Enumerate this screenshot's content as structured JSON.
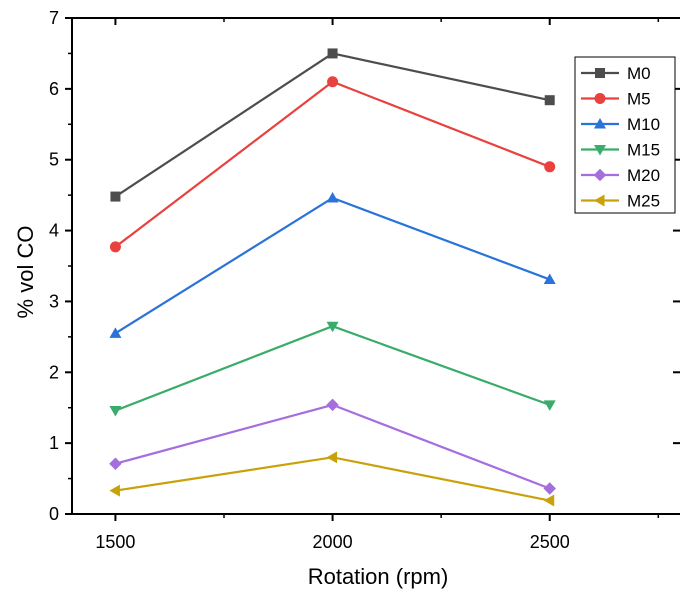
{
  "chart_data": {
    "type": "line",
    "title": "",
    "xlabel": "Rotation (rpm)",
    "ylabel": "% vol CO",
    "x": [
      1500,
      2000,
      2500
    ],
    "xlim": [
      1400,
      2800
    ],
    "ylim": [
      0,
      7
    ],
    "x_ticks": [
      "1500",
      "2000",
      "2500"
    ],
    "y_ticks": [
      "0",
      "1",
      "2",
      "3",
      "4",
      "5",
      "6",
      "7"
    ],
    "grid": false,
    "legend_position": "top-right",
    "series": [
      {
        "name": "M0",
        "values": [
          4.48,
          6.5,
          5.84
        ],
        "color": "#4d4d4d",
        "marker": "square"
      },
      {
        "name": "M5",
        "values": [
          3.77,
          6.1,
          4.9
        ],
        "color": "#e8413e",
        "marker": "circle"
      },
      {
        "name": "M10",
        "values": [
          2.55,
          4.46,
          3.31
        ],
        "color": "#2a73d9",
        "marker": "triangle-up"
      },
      {
        "name": "M15",
        "values": [
          1.46,
          2.65,
          1.54
        ],
        "color": "#3aac6a",
        "marker": "triangle-down"
      },
      {
        "name": "M20",
        "values": [
          0.71,
          1.54,
          0.36
        ],
        "color": "#a56ede",
        "marker": "diamond"
      },
      {
        "name": "M25",
        "values": [
          0.33,
          0.8,
          0.19
        ],
        "color": "#c9a20b",
        "marker": "triangle-left"
      }
    ]
  }
}
